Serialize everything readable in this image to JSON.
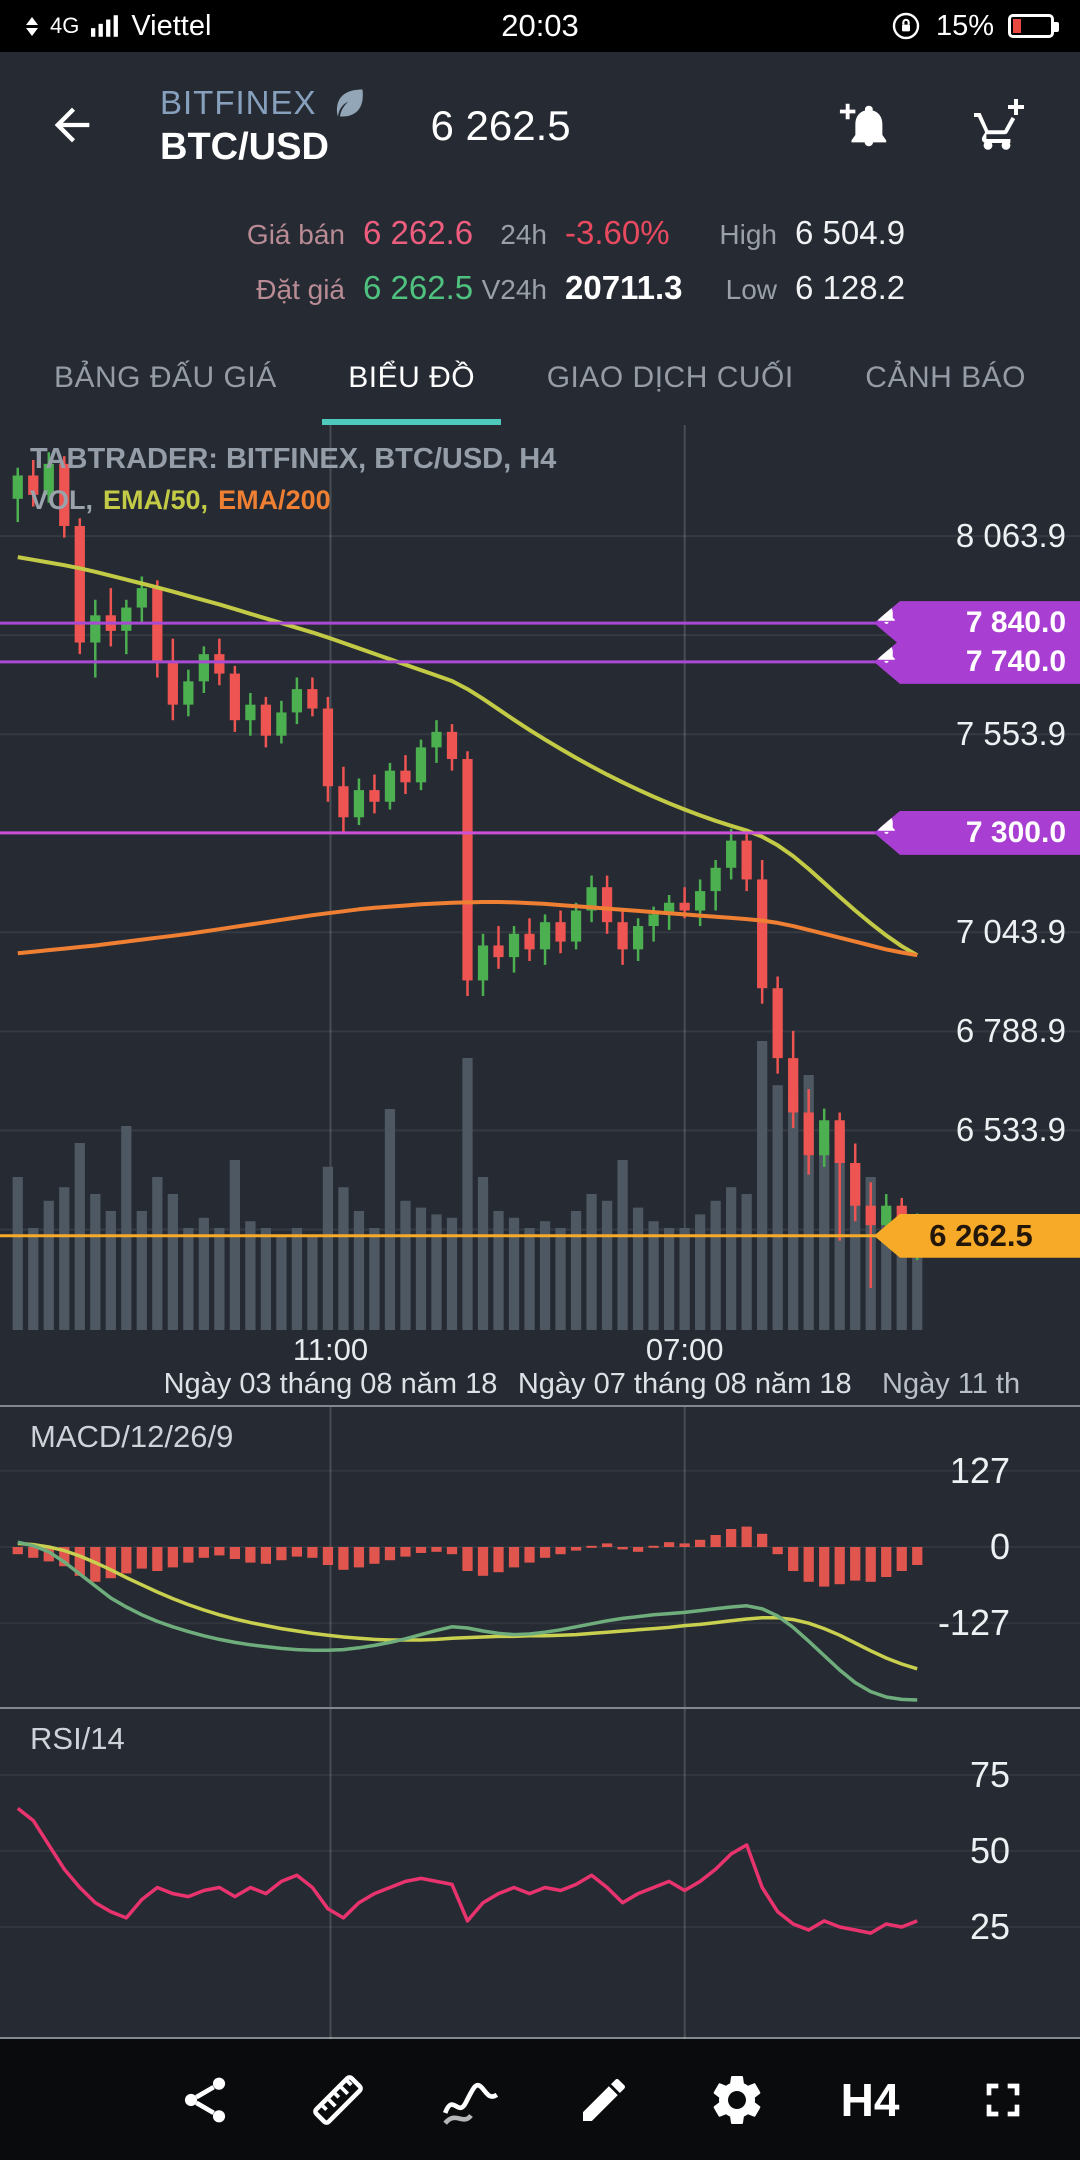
{
  "status_bar": {
    "network": "4G",
    "carrier": "Viettel",
    "time": "20:03",
    "battery_percent": "15%"
  },
  "header": {
    "exchange": "BITFINEX",
    "pair": "BTC/USD",
    "price": "6 262.5"
  },
  "ticker": {
    "ask": {
      "label": "Giá bán",
      "value": "6 262.6"
    },
    "bid": {
      "label": "Đặt giá",
      "value": "6 262.5"
    },
    "change": {
      "label": "24h",
      "value": "-3.60%"
    },
    "volume": {
      "label": "V24h",
      "value": "20711.3"
    },
    "high": {
      "label": "High",
      "value": "6 504.9"
    },
    "low": {
      "label": "Low",
      "value": "6 128.2"
    }
  },
  "tabs": [
    {
      "label": "BẢNG ĐẤU GIÁ",
      "active": false
    },
    {
      "label": "BIỂU ĐỒ",
      "active": true
    },
    {
      "label": "GIAO DỊCH CUỐI",
      "active": false
    },
    {
      "label": "CẢNH BÁO",
      "active": false
    }
  ],
  "chart_header": {
    "watermark": "TABTRADER: BITFINEX, BTC/USD, H4",
    "legend": [
      {
        "label": "VOL,",
        "color": "#9aa2ab"
      },
      {
        "label": "EMA/50,",
        "color": "#c3ca45"
      },
      {
        "label": "EMA/200",
        "color": "#ee7f33"
      }
    ]
  },
  "toolbar": {
    "interval": "H4",
    "icons": [
      "share",
      "ruler",
      "indicators",
      "draw",
      "settings",
      "interval",
      "fullscreen"
    ]
  },
  "chart_data": {
    "type": "candlestick",
    "title": "TABTRADER: BITFINEX, BTC/USD, H4",
    "interval": "H4",
    "price_axis": {
      "min": 6020,
      "max": 8350,
      "gridline_prices": [
        8063.9,
        7808.9,
        7553.9,
        7298.9,
        7043.9,
        6788.9,
        6533.9,
        6278.9
      ],
      "tick_labels": [
        {
          "price": 8063.9,
          "label": "8 063.9"
        },
        {
          "price": 7553.9,
          "label": "7 553.9"
        },
        {
          "price": 7043.9,
          "label": "7 043.9"
        },
        {
          "price": 6788.9,
          "label": "6 788.9"
        },
        {
          "price": 6533.9,
          "label": "6 533.9"
        }
      ]
    },
    "alerts": [
      {
        "price": 7840.0,
        "label": "7 840.0",
        "line": "#a94ad4"
      },
      {
        "price": 7740.0,
        "label": "7 740.0",
        "line": "#a94ad4"
      },
      {
        "price": 7300.0,
        "label": "7 300.0",
        "line": "#cc4fd8"
      }
    ],
    "last_price": {
      "price": 6262.5,
      "label": "6 262.5"
    },
    "x_ticks": [
      {
        "frac": 0.306,
        "time": "11:00",
        "date": "Ngày 03 tháng 08 năm 18"
      },
      {
        "frac": 0.634,
        "time": "07:00",
        "date": "Ngày 07 tháng 08 năm 18"
      },
      {
        "frac": 1.0,
        "time": "",
        "date": "Ngày 11 th"
      }
    ],
    "candles": [
      [
        8160,
        8240,
        8100,
        8220
      ],
      [
        8220,
        8260,
        8140,
        8170
      ],
      [
        8170,
        8280,
        8150,
        8250
      ],
      [
        8250,
        8270,
        8060,
        8090
      ],
      [
        8090,
        8110,
        7760,
        7790
      ],
      [
        7790,
        7900,
        7700,
        7860
      ],
      [
        7860,
        7930,
        7780,
        7820
      ],
      [
        7820,
        7900,
        7760,
        7880
      ],
      [
        7880,
        7960,
        7840,
        7930
      ],
      [
        7930,
        7950,
        7700,
        7740
      ],
      [
        7740,
        7800,
        7590,
        7630
      ],
      [
        7630,
        7720,
        7600,
        7690
      ],
      [
        7690,
        7780,
        7660,
        7760
      ],
      [
        7760,
        7800,
        7680,
        7710
      ],
      [
        7710,
        7730,
        7560,
        7590
      ],
      [
        7590,
        7660,
        7550,
        7630
      ],
      [
        7630,
        7650,
        7520,
        7550
      ],
      [
        7550,
        7640,
        7530,
        7610
      ],
      [
        7610,
        7700,
        7580,
        7670
      ],
      [
        7670,
        7700,
        7600,
        7620
      ],
      [
        7620,
        7650,
        7380,
        7420
      ],
      [
        7420,
        7470,
        7300,
        7340
      ],
      [
        7340,
        7440,
        7320,
        7410
      ],
      [
        7410,
        7450,
        7350,
        7380
      ],
      [
        7380,
        7480,
        7360,
        7460
      ],
      [
        7460,
        7500,
        7400,
        7430
      ],
      [
        7430,
        7540,
        7410,
        7520
      ],
      [
        7520,
        7590,
        7480,
        7560
      ],
      [
        7560,
        7580,
        7460,
        7490
      ],
      [
        7490,
        7510,
        6880,
        6920
      ],
      [
        6920,
        7040,
        6880,
        7010
      ],
      [
        7010,
        7060,
        6950,
        6980
      ],
      [
        6980,
        7060,
        6940,
        7040
      ],
      [
        7040,
        7080,
        6970,
        7000
      ],
      [
        7000,
        7090,
        6960,
        7070
      ],
      [
        7070,
        7100,
        6990,
        7020
      ],
      [
        7020,
        7120,
        7000,
        7100
      ],
      [
        7100,
        7190,
        7070,
        7160
      ],
      [
        7160,
        7190,
        7040,
        7070
      ],
      [
        7070,
        7100,
        6960,
        7000
      ],
      [
        7000,
        7080,
        6970,
        7060
      ],
      [
        7060,
        7110,
        7020,
        7090
      ],
      [
        7090,
        7140,
        7050,
        7120
      ],
      [
        7120,
        7160,
        7080,
        7100
      ],
      [
        7100,
        7180,
        7060,
        7150
      ],
      [
        7150,
        7230,
        7100,
        7210
      ],
      [
        7210,
        7310,
        7180,
        7280
      ],
      [
        7280,
        7310,
        7150,
        7180
      ],
      [
        7180,
        7230,
        6860,
        6900
      ],
      [
        6900,
        6930,
        6680,
        6720
      ],
      [
        6720,
        6790,
        6540,
        6580
      ],
      [
        6580,
        6640,
        6420,
        6470
      ],
      [
        6470,
        6590,
        6440,
        6560
      ],
      [
        6560,
        6580,
        6250,
        6450
      ],
      [
        6450,
        6500,
        6300,
        6340
      ],
      [
        6340,
        6400,
        6128,
        6290
      ],
      [
        6290,
        6370,
        6240,
        6340
      ],
      [
        6340,
        6360,
        6210,
        6250
      ],
      [
        6250,
        6320,
        6200,
        6262
      ]
    ],
    "volume": [
      0.45,
      0.3,
      0.38,
      0.42,
      0.55,
      0.4,
      0.35,
      0.6,
      0.35,
      0.45,
      0.4,
      0.3,
      0.33,
      0.3,
      0.5,
      0.32,
      0.3,
      0.28,
      0.3,
      0.28,
      0.48,
      0.42,
      0.35,
      0.3,
      0.65,
      0.38,
      0.36,
      0.34,
      0.33,
      0.8,
      0.45,
      0.35,
      0.33,
      0.3,
      0.32,
      0.3,
      0.35,
      0.4,
      0.38,
      0.5,
      0.36,
      0.32,
      0.3,
      0.3,
      0.34,
      0.38,
      0.42,
      0.4,
      0.85,
      0.72,
      0.7,
      0.75,
      0.55,
      0.6,
      0.48,
      0.45,
      0.35,
      0.3,
      0.28
    ],
    "ema50": [
      8010,
      8003,
      7996,
      7989,
      7981,
      7972,
      7962,
      7952,
      7942,
      7932,
      7921,
      7910,
      7899,
      7888,
      7876,
      7864,
      7852,
      7840,
      7828,
      7816,
      7803,
      7789,
      7775,
      7761,
      7747,
      7733,
      7719,
      7705,
      7691,
      7670,
      7645,
      7618,
      7591,
      7565,
      7540,
      7516,
      7493,
      7471,
      7450,
      7430,
      7411,
      7393,
      7376,
      7360,
      7345,
      7331,
      7318,
      7306,
      7290,
      7268,
      7240,
      7207,
      7171,
      7135,
      7100,
      7067,
      7036,
      7008,
      6985
    ],
    "ema200": [
      6990,
      6994,
      6998,
      7002,
      7006,
      7010,
      7015,
      7020,
      7025,
      7030,
      7035,
      7040,
      7046,
      7052,
      7058,
      7064,
      7070,
      7076,
      7082,
      7088,
      7093,
      7098,
      7103,
      7107,
      7110,
      7113,
      7116,
      7118,
      7120,
      7121,
      7122,
      7122,
      7121,
      7119,
      7117,
      7114,
      7111,
      7108,
      7105,
      7102,
      7099,
      7096,
      7093,
      7090,
      7087,
      7084,
      7081,
      7078,
      7074,
      7068,
      7060,
      7050,
      7040,
      7030,
      7020,
      7010,
      7000,
      6992,
      6985
    ],
    "macd": {
      "label": "MACD/12/26/9",
      "y_ticks": [
        127,
        0,
        -127
      ],
      "histogram": [
        -12,
        -18,
        -24,
        -32,
        -48,
        -58,
        -52,
        -44,
        -36,
        -40,
        -34,
        -26,
        -18,
        -14,
        -20,
        -26,
        -28,
        -22,
        -16,
        -18,
        -30,
        -38,
        -34,
        -28,
        -22,
        -16,
        -10,
        -8,
        -12,
        -40,
        -48,
        -42,
        -34,
        -26,
        -18,
        -12,
        -6,
        2,
        6,
        -4,
        -8,
        2,
        8,
        6,
        12,
        20,
        30,
        34,
        22,
        -12,
        -40,
        -58,
        -66,
        -62,
        -56,
        -58,
        -50,
        -40,
        -30
      ],
      "macd_line": [
        8,
        2,
        -8,
        -25,
        -45,
        -65,
        -85,
        -100,
        -113,
        -124,
        -133,
        -141,
        -148,
        -154,
        -159,
        -163,
        -166,
        -169,
        -171,
        -172,
        -172,
        -171,
        -168,
        -164,
        -159,
        -153,
        -146,
        -139,
        -133,
        -135,
        -140,
        -144,
        -146,
        -145,
        -142,
        -138,
        -133,
        -128,
        -123,
        -119,
        -116,
        -113,
        -111,
        -109,
        -106,
        -103,
        -100,
        -98,
        -103,
        -115,
        -134,
        -157,
        -181,
        -205,
        -226,
        -241,
        -250,
        -254,
        -255
      ],
      "signal_line": [
        6,
        4,
        0,
        -6,
        -15,
        -26,
        -38,
        -51,
        -63,
        -75,
        -86,
        -96,
        -105,
        -113,
        -120,
        -126,
        -131,
        -136,
        -140,
        -144,
        -147,
        -150,
        -152,
        -154,
        -155,
        -155,
        -155,
        -154,
        -152,
        -151,
        -150,
        -149,
        -149,
        -148,
        -148,
        -147,
        -146,
        -144,
        -142,
        -140,
        -138,
        -136,
        -134,
        -131,
        -129,
        -126,
        -123,
        -120,
        -118,
        -118,
        -121,
        -127,
        -136,
        -147,
        -160,
        -173,
        -185,
        -195,
        -203
      ]
    },
    "rsi": {
      "label": "RSI/14",
      "y_ticks": [
        75,
        50,
        25
      ],
      "values": [
        64,
        60,
        52,
        44,
        38,
        33,
        30,
        28,
        34,
        38,
        36,
        35,
        37,
        38,
        35,
        38,
        36,
        40,
        42,
        38,
        31,
        28,
        33,
        36,
        38,
        40,
        41,
        40,
        39,
        27,
        33,
        36,
        38,
        36,
        38,
        37,
        39,
        42,
        38,
        33,
        36,
        38,
        40,
        37,
        40,
        44,
        49,
        52,
        38,
        30,
        26,
        24,
        27,
        25,
        24,
        23,
        26,
        25,
        27
      ]
    },
    "colors": {
      "up": "#4caf50",
      "down": "#ee5451",
      "volume": "#4e5862",
      "ema50": "#c3ca45",
      "ema200": "#ee7f33",
      "alert_badge": "#a93ed2",
      "last": "#f7a928",
      "macd_hist": "#e0564f",
      "macd_line": "#6fae7c",
      "macd_signal": "#c9cf4e",
      "rsi": "#e8336e"
    }
  }
}
